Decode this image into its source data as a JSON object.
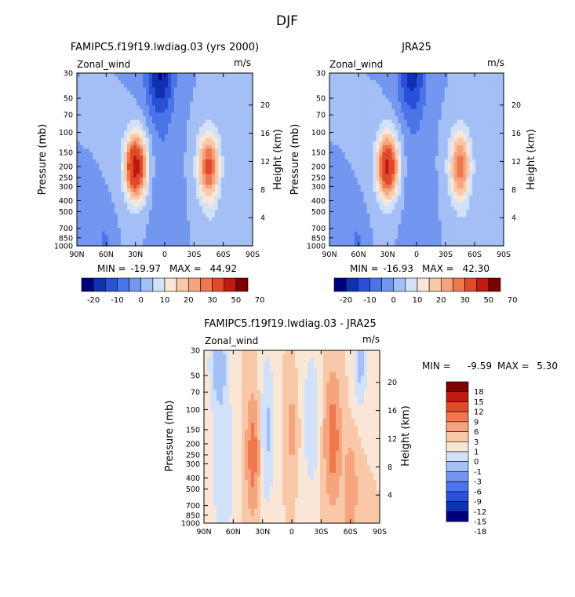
{
  "figure": {
    "main_title": "DJF",
    "colors": {
      "panel_palette": [
        "#00007f",
        "#1030b0",
        "#2850d8",
        "#4a74e8",
        "#7396f0",
        "#a4bff5",
        "#d2e1fa",
        "#fae6d6",
        "#f8c8a8",
        "#f6a47e",
        "#f0784e",
        "#e04a28",
        "#c01a10",
        "#7e0000"
      ],
      "diff_palette": [
        "#00007f",
        "#1030b0",
        "#2850d8",
        "#4a74e8",
        "#7396f0",
        "#a4bff5",
        "#d2e1fa",
        "#fae6d6",
        "#f8c8a8",
        "#f6a47e",
        "#f0784e",
        "#e04a28",
        "#c01a10",
        "#7e0000"
      ]
    }
  },
  "chart_data": [
    {
      "type": "heatmap",
      "title": "FAMIPC5.f19f19.lwdiag.03 (yrs 2000)",
      "left_label": "Zonal_wind",
      "right_label": "m/s",
      "ylabel": "Pressure (mb)",
      "ylabel_right": "Height (km)",
      "x_ticks": [
        "90N",
        "60N",
        "30N",
        "0",
        "30S",
        "60S",
        "90S"
      ],
      "y_ticks": [
        "30",
        "50",
        "70",
        "100",
        "150",
        "200",
        "250",
        "300",
        "400",
        "500",
        "700",
        "850",
        "1000"
      ],
      "height_ticks": [
        "4",
        "8",
        "12",
        "16",
        "20"
      ],
      "xlim": [
        90,
        -90
      ],
      "ylim": [
        1000,
        30
      ],
      "stats": {
        "min_label": "MIN =",
        "min": "-19.97",
        "max_label": "MAX =",
        "max": "44.92"
      },
      "colorbar_labels": [
        "-20",
        "-10",
        "0",
        "10",
        "20",
        "30",
        "50",
        "70"
      ],
      "jets": [
        {
          "lat": 30,
          "p": 200,
          "max": 45,
          "sigma_lat": 11,
          "sigma_p": 0.65
        },
        {
          "lat": -45,
          "p": 200,
          "max": 32,
          "sigma_lat": 11,
          "sigma_p": 0.7
        }
      ],
      "easterly_core": {
        "lat": 5,
        "p": 30,
        "min": -20
      }
    },
    {
      "type": "heatmap",
      "title": "JRA25",
      "left_label": "Zonal_wind",
      "right_label": "m/s",
      "ylabel": "Pressure (mb)",
      "ylabel_right": "Height (km)",
      "x_ticks": [
        "90N",
        "60N",
        "30N",
        "0",
        "30S",
        "60S",
        "90S"
      ],
      "y_ticks": [
        "30",
        "50",
        "70",
        "100",
        "150",
        "200",
        "250",
        "300",
        "400",
        "500",
        "700",
        "850",
        "1000"
      ],
      "height_ticks": [
        "4",
        "8",
        "12",
        "16",
        "20"
      ],
      "xlim": [
        90,
        -90
      ],
      "ylim": [
        1000,
        30
      ],
      "stats": {
        "min_label": "MIN =",
        "min": "-16.93",
        "max_label": "MAX =",
        "max": "42.30"
      },
      "colorbar_labels": [
        "-20",
        "-10",
        "0",
        "10",
        "20",
        "30",
        "50",
        "70"
      ],
      "jets": [
        {
          "lat": 30,
          "p": 200,
          "max": 42,
          "sigma_lat": 11,
          "sigma_p": 0.65
        },
        {
          "lat": -45,
          "p": 200,
          "max": 29,
          "sigma_lat": 11,
          "sigma_p": 0.7
        }
      ],
      "easterly_core": {
        "lat": 5,
        "p": 30,
        "min": -17
      }
    },
    {
      "type": "heatmap",
      "title": "FAMIPC5.f19f19.lwdiag.03 - JRA25",
      "left_label": "Zonal_wind",
      "right_label": "m/s",
      "ylabel": "Pressure (mb)",
      "ylabel_right": "Height (km)",
      "x_ticks": [
        "90N",
        "60N",
        "30N",
        "0",
        "30S",
        "60S",
        "90S"
      ],
      "y_ticks": [
        "30",
        "50",
        "70",
        "100",
        "150",
        "200",
        "250",
        "300",
        "400",
        "500",
        "700",
        "850",
        "1000"
      ],
      "height_ticks": [
        "4",
        "8",
        "12",
        "16",
        "20"
      ],
      "xlim": [
        90,
        -90
      ],
      "ylim": [
        1000,
        30
      ],
      "stats": {
        "min_label": "MIN =",
        "min": "-9.59",
        "max_label": "MAX =",
        "max": "5.30"
      },
      "colorbar_labels": [
        "18",
        "15",
        "12",
        "9",
        "6",
        "3",
        "1",
        "0",
        "-1",
        "-3",
        "-6",
        "-9",
        "-12",
        "-15",
        "-18"
      ]
    }
  ]
}
